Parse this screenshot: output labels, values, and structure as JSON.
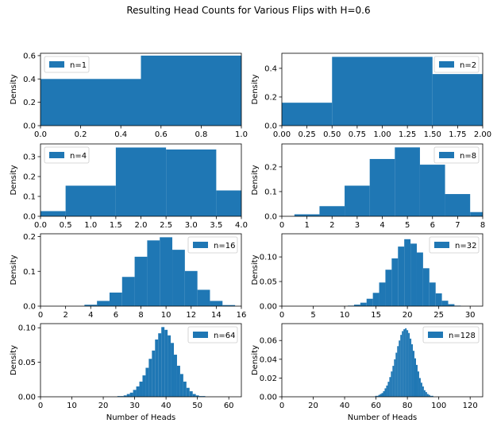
{
  "figure": {
    "suptitle": "Resulting Head Counts for Various Flips with H=0.6",
    "bar_color": "#1f77b4"
  },
  "chart_data": [
    {
      "type": "bar",
      "legend": "n=1",
      "legend_loc": "upper-left",
      "bins": [
        [
          0,
          0.5,
          0.4
        ],
        [
          0.5,
          1.0,
          0.6
        ]
      ],
      "xlim": [
        0,
        1
      ],
      "ylim": [
        0,
        0.62
      ],
      "xticks": [
        "0.0",
        "0.2",
        "0.4",
        "0.6",
        "0.8",
        "1.0"
      ],
      "xtick_vals": [
        0,
        0.2,
        0.4,
        0.6,
        0.8,
        1.0
      ],
      "yticks": [
        "0.0",
        "0.2",
        "0.4",
        "0.6"
      ],
      "ytick_vals": [
        0,
        0.2,
        0.4,
        0.6
      ],
      "ylabel": "Density",
      "xlabel": ""
    },
    {
      "type": "bar",
      "legend": "n=2",
      "legend_loc": "upper-right",
      "bins": [
        [
          0,
          0.5,
          0.16
        ],
        [
          0.5,
          1.5,
          0.48
        ],
        [
          1.5,
          2.0,
          0.36
        ]
      ],
      "xlim": [
        0,
        2
      ],
      "ylim": [
        0,
        0.505
      ],
      "xticks": [
        "0.00",
        "0.25",
        "0.50",
        "0.75",
        "1.00",
        "1.25",
        "1.50",
        "1.75",
        "2.00"
      ],
      "xtick_vals": [
        0,
        0.25,
        0.5,
        0.75,
        1.0,
        1.25,
        1.5,
        1.75,
        2.0
      ],
      "yticks": [
        "0.0",
        "0.2",
        "0.4"
      ],
      "ytick_vals": [
        0,
        0.2,
        0.4
      ],
      "ylabel": "Density",
      "xlabel": ""
    },
    {
      "type": "bar",
      "legend": "n=4",
      "legend_loc": "upper-left",
      "bins": [
        [
          0,
          0.5,
          0.026
        ],
        [
          0.5,
          1.5,
          0.154
        ],
        [
          1.5,
          2.5,
          0.346
        ],
        [
          2.5,
          3.5,
          0.336
        ],
        [
          3.5,
          4.0,
          0.13
        ]
      ],
      "xlim": [
        0,
        4
      ],
      "ylim": [
        0,
        0.364
      ],
      "xticks": [
        "0.0",
        "0.5",
        "1.0",
        "1.5",
        "2.0",
        "2.5",
        "3.0",
        "3.5",
        "4.0"
      ],
      "xtick_vals": [
        0,
        0.5,
        1,
        1.5,
        2,
        2.5,
        3,
        3.5,
        4
      ],
      "yticks": [
        "0.0",
        "0.1",
        "0.2",
        "0.3"
      ],
      "ytick_vals": [
        0,
        0.1,
        0.2,
        0.3
      ],
      "ylabel": "Density",
      "xlabel": ""
    },
    {
      "type": "bar",
      "legend": "n=8",
      "legend_loc": "upper-right",
      "bins": [
        [
          0.5,
          1.5,
          0.008
        ],
        [
          1.5,
          2.5,
          0.041
        ],
        [
          2.5,
          3.5,
          0.124
        ],
        [
          3.5,
          4.5,
          0.232
        ],
        [
          4.5,
          5.5,
          0.279
        ],
        [
          5.5,
          6.5,
          0.209
        ],
        [
          6.5,
          7.5,
          0.09
        ],
        [
          7.5,
          8.0,
          0.017
        ]
      ],
      "xlim": [
        0,
        8
      ],
      "ylim": [
        0,
        0.293
      ],
      "xticks": [
        "0",
        "1",
        "2",
        "3",
        "4",
        "5",
        "6",
        "7",
        "8"
      ],
      "xtick_vals": [
        0,
        1,
        2,
        3,
        4,
        5,
        6,
        7,
        8
      ],
      "yticks": [
        "0.0",
        "0.1",
        "0.2"
      ],
      "ytick_vals": [
        0,
        0.1,
        0.2
      ],
      "ylabel": "Density",
      "xlabel": ""
    },
    {
      "type": "bar",
      "legend": "n=16",
      "legend_loc": "upper-right",
      "bins": [
        [
          3.5,
          4.5,
          0.004
        ],
        [
          4.5,
          5.5,
          0.015
        ],
        [
          5.5,
          6.5,
          0.039
        ],
        [
          6.5,
          7.5,
          0.084
        ],
        [
          7.5,
          8.5,
          0.142
        ],
        [
          8.5,
          9.5,
          0.189
        ],
        [
          9.5,
          10.5,
          0.198
        ],
        [
          10.5,
          11.5,
          0.162
        ],
        [
          11.5,
          12.5,
          0.101
        ],
        [
          12.5,
          13.5,
          0.047
        ],
        [
          13.5,
          14.5,
          0.015
        ],
        [
          14.5,
          15.5,
          0.003
        ]
      ],
      "xlim": [
        0,
        16
      ],
      "ylim": [
        0,
        0.208
      ],
      "xticks": [
        "0",
        "2",
        "4",
        "6",
        "8",
        "10",
        "12",
        "14",
        "16"
      ],
      "xtick_vals": [
        0,
        2,
        4,
        6,
        8,
        10,
        12,
        14,
        16
      ],
      "yticks": [
        "0.0",
        "0.1",
        "0.2"
      ],
      "ytick_vals": [
        0,
        0.1,
        0.2
      ],
      "ylabel": "Density",
      "xlabel": ""
    },
    {
      "type": "bar",
      "legend": "n=32",
      "legend_loc": "upper-right",
      "bins": [
        [
          10.5,
          11.5,
          0.001
        ],
        [
          11.5,
          12.5,
          0.003
        ],
        [
          12.5,
          13.5,
          0.007
        ],
        [
          13.5,
          14.5,
          0.015
        ],
        [
          14.5,
          15.5,
          0.027
        ],
        [
          15.5,
          16.5,
          0.048
        ],
        [
          16.5,
          17.5,
          0.074
        ],
        [
          17.5,
          18.5,
          0.097
        ],
        [
          18.5,
          19.5,
          0.121
        ],
        [
          19.5,
          20.5,
          0.136
        ],
        [
          20.5,
          21.5,
          0.127
        ],
        [
          21.5,
          22.5,
          0.109
        ],
        [
          22.5,
          23.5,
          0.077
        ],
        [
          23.5,
          24.5,
          0.048
        ],
        [
          24.5,
          25.5,
          0.026
        ],
        [
          25.5,
          26.5,
          0.011
        ],
        [
          26.5,
          27.5,
          0.004
        ],
        [
          27.5,
          28.5,
          0.001
        ]
      ],
      "xlim": [
        0,
        32
      ],
      "ylim": [
        0,
        0.147
      ],
      "xticks": [
        "0",
        "5",
        "10",
        "15",
        "20",
        "25",
        "30"
      ],
      "xtick_vals": [
        0,
        5,
        10,
        15,
        20,
        25,
        30
      ],
      "yticks": [
        "0.00",
        "0.05",
        "0.10"
      ],
      "ytick_vals": [
        0,
        0.05,
        0.1
      ],
      "ylabel": "Density",
      "xlabel": ""
    },
    {
      "type": "bar",
      "legend": "n=64",
      "legend_loc": "upper-right",
      "bins": [
        [
          24.5,
          25.5,
          0.001
        ],
        [
          25.5,
          26.5,
          0.001
        ],
        [
          26.5,
          27.5,
          0.002
        ],
        [
          27.5,
          28.5,
          0.004
        ],
        [
          28.5,
          29.5,
          0.006
        ],
        [
          29.5,
          30.5,
          0.01
        ],
        [
          30.5,
          31.5,
          0.015
        ],
        [
          31.5,
          32.5,
          0.022
        ],
        [
          32.5,
          33.5,
          0.031
        ],
        [
          33.5,
          34.5,
          0.042
        ],
        [
          34.5,
          35.5,
          0.055
        ],
        [
          35.5,
          36.5,
          0.067
        ],
        [
          36.5,
          37.5,
          0.083
        ],
        [
          37.5,
          38.5,
          0.092
        ],
        [
          38.5,
          39.5,
          0.101
        ],
        [
          39.5,
          40.5,
          0.097
        ],
        [
          40.5,
          41.5,
          0.089
        ],
        [
          41.5,
          42.5,
          0.078
        ],
        [
          42.5,
          43.5,
          0.061
        ],
        [
          43.5,
          44.5,
          0.045
        ],
        [
          44.5,
          45.5,
          0.033
        ],
        [
          45.5,
          46.5,
          0.022
        ],
        [
          46.5,
          47.5,
          0.013
        ],
        [
          47.5,
          48.5,
          0.008
        ],
        [
          48.5,
          49.5,
          0.004
        ],
        [
          49.5,
          50.5,
          0.002
        ],
        [
          50.5,
          51.5,
          0.001
        ],
        [
          51.5,
          52.5,
          0.001
        ]
      ],
      "xlim": [
        0,
        64
      ],
      "ylim": [
        0,
        0.106
      ],
      "xticks": [
        "0",
        "10",
        "20",
        "30",
        "40",
        "50",
        "60"
      ],
      "xtick_vals": [
        0,
        10,
        20,
        30,
        40,
        50,
        60
      ],
      "yticks": [
        "0.00",
        "0.05",
        "0.10"
      ],
      "ytick_vals": [
        0,
        0.05,
        0.1
      ],
      "ylabel": "Density",
      "xlabel": "Number of Heads"
    },
    {
      "type": "bar",
      "legend": "n=128",
      "legend_loc": "upper-right",
      "bins": [
        [
          59.5,
          60.5,
          0.001
        ],
        [
          60.5,
          61.5,
          0.001
        ],
        [
          61.5,
          62.5,
          0.002
        ],
        [
          62.5,
          63.5,
          0.003
        ],
        [
          63.5,
          64.5,
          0.004
        ],
        [
          64.5,
          65.5,
          0.006
        ],
        [
          65.5,
          66.5,
          0.009
        ],
        [
          66.5,
          67.5,
          0.012
        ],
        [
          67.5,
          68.5,
          0.016
        ],
        [
          68.5,
          69.5,
          0.021
        ],
        [
          69.5,
          70.5,
          0.027
        ],
        [
          70.5,
          71.5,
          0.033
        ],
        [
          71.5,
          72.5,
          0.04
        ],
        [
          72.5,
          73.5,
          0.047
        ],
        [
          73.5,
          74.5,
          0.054
        ],
        [
          74.5,
          75.5,
          0.06
        ],
        [
          75.5,
          76.5,
          0.066
        ],
        [
          76.5,
          77.5,
          0.07
        ],
        [
          77.5,
          78.5,
          0.072
        ],
        [
          78.5,
          79.5,
          0.073
        ],
        [
          79.5,
          80.5,
          0.071
        ],
        [
          80.5,
          81.5,
          0.068
        ],
        [
          81.5,
          82.5,
          0.062
        ],
        [
          82.5,
          83.5,
          0.056
        ],
        [
          83.5,
          84.5,
          0.049
        ],
        [
          84.5,
          85.5,
          0.041
        ],
        [
          85.5,
          86.5,
          0.034
        ],
        [
          86.5,
          87.5,
          0.027
        ],
        [
          87.5,
          88.5,
          0.02
        ],
        [
          88.5,
          89.5,
          0.015
        ],
        [
          89.5,
          90.5,
          0.011
        ],
        [
          90.5,
          91.5,
          0.007
        ],
        [
          91.5,
          92.5,
          0.005
        ],
        [
          92.5,
          93.5,
          0.003
        ],
        [
          93.5,
          94.5,
          0.002
        ],
        [
          94.5,
          95.5,
          0.001
        ],
        [
          95.5,
          96.5,
          0.001
        ]
      ],
      "xlim": [
        0,
        128
      ],
      "ylim": [
        0,
        0.078
      ],
      "xticks": [
        "0",
        "20",
        "40",
        "60",
        "80",
        "100",
        "120"
      ],
      "xtick_vals": [
        0,
        20,
        40,
        60,
        80,
        100,
        120
      ],
      "yticks": [
        "0.00",
        "0.02",
        "0.04",
        "0.06"
      ],
      "ytick_vals": [
        0,
        0.02,
        0.04,
        0.06
      ],
      "ylabel": "Density",
      "xlabel": "Number of Heads"
    }
  ]
}
